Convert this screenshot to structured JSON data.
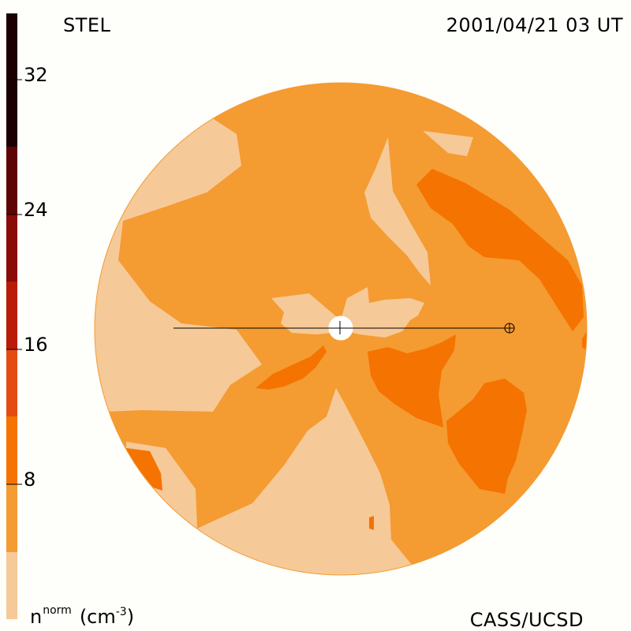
{
  "header": {
    "instrument": "STEL",
    "timestamp": "2001/04/21 03 UT"
  },
  "colorbar": {
    "ticks": [
      "32",
      "24",
      "16",
      "8"
    ],
    "unit_base": "n",
    "unit_sup": "norm",
    "unit_rest": "(cm",
    "unit_rest_sup": "-3",
    "unit_close": ")"
  },
  "footer": {
    "credit": "CASS/UCSD"
  },
  "colors": {
    "band_1": "#f6c998",
    "band_2": "#f49b32",
    "band_3": "#f57300",
    "band_4": "#e44b10",
    "band_5": "#ba1a08",
    "band_6": "#8b0c06",
    "band_7": "#5e0404",
    "band_8": "#1a0000",
    "disk_base": "#f49b32",
    "disk_light": "#f6c998",
    "disk_dark": "#f57300"
  }
}
